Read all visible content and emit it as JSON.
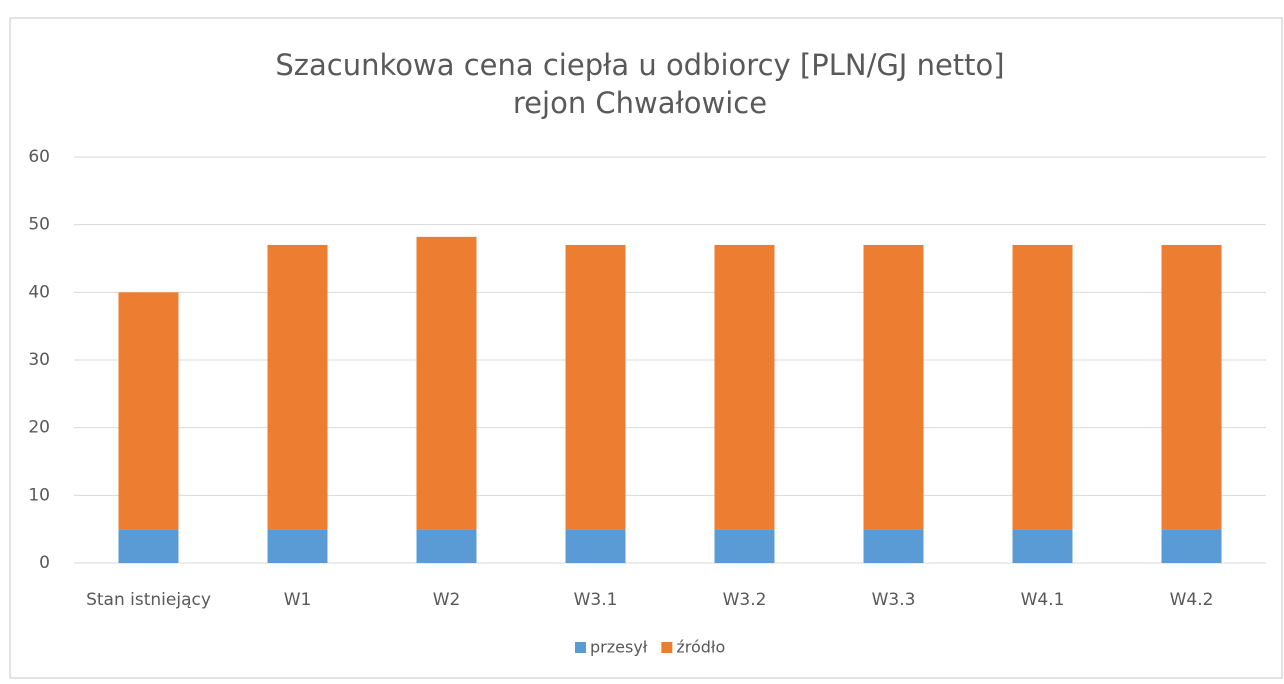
{
  "chart_data": {
    "type": "stacked_bar",
    "title": "Szacunkowa cena ciepła u odbiorcy [PLN/GJ netto]",
    "subtitle": "rejon Chwałowice",
    "categories": [
      "Stan istniejący",
      "W1",
      "W2",
      "W3.1",
      "W3.2",
      "W3.3",
      "W4.1",
      "W4.2"
    ],
    "series": [
      {
        "name": "przesył",
        "color": "#5b9bd5",
        "values": [
          5,
          5,
          5,
          5,
          5,
          5,
          5,
          5
        ]
      },
      {
        "name": "źródło",
        "color": "#ed7d31",
        "values": [
          35,
          42,
          43.2,
          42,
          42,
          42,
          42,
          42
        ]
      }
    ],
    "ylim": [
      0,
      60
    ],
    "yticks": [
      0,
      10,
      20,
      30,
      40,
      50,
      60
    ],
    "grid": true,
    "legend": "bottom"
  }
}
